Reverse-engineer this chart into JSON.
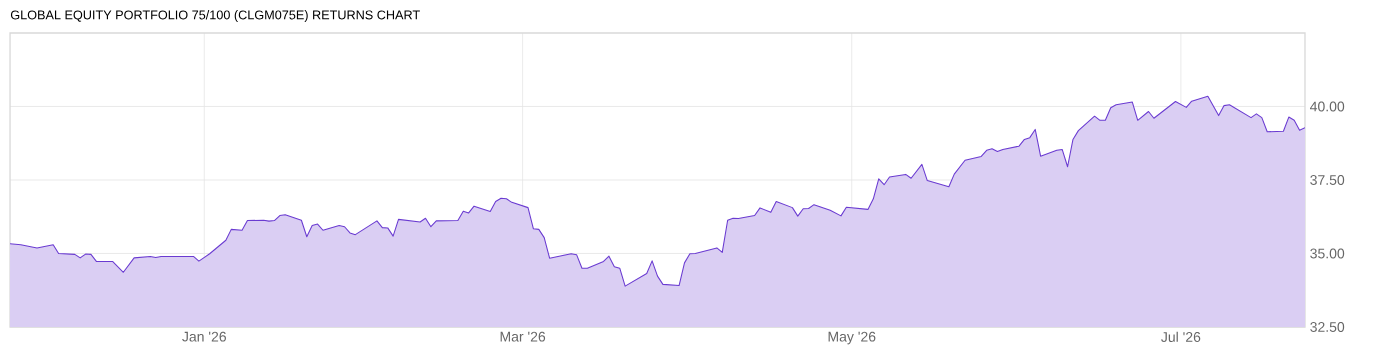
{
  "chart_data": {
    "type": "area",
    "title": "GLOBAL EQUITY PORTFOLIO 75/100 (CLGM075E) RETURNS CHART",
    "x": [
      "2025-11-26",
      "2025-11-28",
      "2025-12-01",
      "2025-12-04",
      "2025-12-05",
      "2025-12-08",
      "2025-12-09",
      "2025-12-10",
      "2025-12-11",
      "2025-12-12",
      "2025-12-15",
      "2025-12-17",
      "2025-12-19",
      "2025-12-22",
      "2025-12-23",
      "2025-12-24",
      "2025-12-30",
      "2025-12-31",
      "2026-01-02",
      "2026-01-05",
      "2026-01-06",
      "2026-01-08",
      "2026-01-09",
      "2026-01-12",
      "2026-01-13",
      "2026-01-14",
      "2026-01-15",
      "2026-01-16",
      "2026-01-19",
      "2026-01-20",
      "2026-01-21",
      "2026-01-22",
      "2026-01-23",
      "2026-01-26",
      "2026-01-27",
      "2026-01-28",
      "2026-01-29",
      "2026-02-02",
      "2026-02-03",
      "2026-02-04",
      "2026-02-05",
      "2026-02-06",
      "2026-02-10",
      "2026-02-11",
      "2026-02-12",
      "2026-02-13",
      "2026-02-17",
      "2026-02-18",
      "2026-02-19",
      "2026-02-20",
      "2026-02-23",
      "2026-02-24",
      "2026-02-25",
      "2026-02-26",
      "2026-02-27",
      "2026-03-02",
      "2026-03-03",
      "2026-03-04",
      "2026-03-05",
      "2026-03-06",
      "2026-03-10",
      "2026-03-11",
      "2026-03-12",
      "2026-03-13",
      "2026-03-16",
      "2026-03-17",
      "2026-03-18",
      "2026-03-19",
      "2026-03-20",
      "2026-03-24",
      "2026-03-25",
      "2026-03-26",
      "2026-03-27",
      "2026-03-30",
      "2026-03-31",
      "2026-04-01",
      "2026-04-02",
      "2026-04-06",
      "2026-04-07",
      "2026-04-08",
      "2026-04-09",
      "2026-04-10",
      "2026-04-13",
      "2026-04-14",
      "2026-04-16",
      "2026-04-17",
      "2026-04-20",
      "2026-04-21",
      "2026-04-22",
      "2026-04-23",
      "2026-04-24",
      "2026-04-27",
      "2026-04-29",
      "2026-04-30",
      "2026-05-04",
      "2026-05-05",
      "2026-05-06",
      "2026-05-07",
      "2026-05-08",
      "2026-05-11",
      "2026-05-12",
      "2026-05-14",
      "2026-05-15",
      "2026-05-19",
      "2026-05-20",
      "2026-05-22",
      "2026-05-25",
      "2026-05-26",
      "2026-05-27",
      "2026-05-28",
      "2026-05-29",
      "2026-06-01",
      "2026-06-02",
      "2026-06-03",
      "2026-06-04",
      "2026-06-05",
      "2026-06-08",
      "2026-06-09",
      "2026-06-10",
      "2026-06-11",
      "2026-06-12",
      "2026-06-15",
      "2026-06-16",
      "2026-06-17",
      "2026-06-18",
      "2026-06-19",
      "2026-06-22",
      "2026-06-23",
      "2026-06-25",
      "2026-06-26",
      "2026-06-30",
      "2026-07-02",
      "2026-07-03",
      "2026-07-06",
      "2026-07-08",
      "2026-07-09",
      "2026-07-10",
      "2026-07-14",
      "2026-07-15",
      "2026-07-16",
      "2026-07-17",
      "2026-07-20",
      "2026-07-21",
      "2026-07-22",
      "2026-07-23",
      "2026-07-24"
    ],
    "series": [
      {
        "color": "#6a3bd1",
        "values": [
          35.33,
          35.3,
          35.19,
          35.3,
          35.0,
          34.97,
          34.85,
          34.98,
          34.97,
          34.73,
          34.73,
          34.36,
          34.85,
          34.9,
          34.86,
          34.9,
          34.9,
          34.74,
          34.99,
          35.45,
          35.82,
          35.79,
          36.12,
          36.13,
          36.1,
          36.12,
          36.29,
          36.32,
          36.13,
          35.57,
          35.95,
          36.0,
          35.79,
          35.95,
          35.91,
          35.7,
          35.64,
          36.11,
          35.88,
          35.87,
          35.59,
          36.16,
          36.07,
          36.2,
          35.91,
          36.11,
          36.12,
          36.44,
          36.38,
          36.61,
          36.43,
          36.77,
          36.88,
          36.86,
          36.74,
          36.56,
          35.84,
          35.82,
          35.54,
          34.84,
          34.99,
          34.96,
          34.5,
          34.5,
          34.73,
          34.91,
          34.55,
          34.5,
          33.89,
          34.32,
          34.75,
          34.23,
          33.95,
          33.91,
          34.68,
          34.99,
          35.0,
          35.19,
          35.04,
          36.13,
          36.2,
          36.19,
          36.29,
          36.55,
          36.4,
          36.77,
          36.56,
          36.27,
          36.52,
          36.53,
          36.66,
          36.47,
          36.28,
          36.57,
          36.5,
          36.86,
          37.54,
          37.34,
          37.6,
          37.69,
          37.56,
          38.03,
          37.48,
          37.27,
          37.7,
          38.17,
          38.3,
          38.51,
          38.56,
          38.47,
          38.54,
          38.65,
          38.88,
          38.94,
          39.22,
          38.31,
          38.51,
          38.54,
          37.95,
          38.88,
          39.18,
          39.67,
          39.53,
          39.53,
          39.96,
          40.06,
          40.15,
          39.53,
          39.83,
          39.6,
          40.17,
          39.97,
          40.18,
          40.35,
          39.69,
          40.03,
          40.06,
          39.62,
          39.75,
          39.62,
          39.14,
          39.16,
          39.64,
          39.53,
          39.19,
          39.28
        ]
      }
    ],
    "xlim": [
      "2025-11-26",
      "2026-07-24"
    ],
    "xticks": [
      {
        "value": "2026-01-01",
        "label": "Jan '26"
      },
      {
        "value": "2026-03-01",
        "label": "Mar '26"
      },
      {
        "value": "2026-05-01",
        "label": "May '26"
      },
      {
        "value": "2026-07-01",
        "label": "Jul '26"
      }
    ],
    "ylim": [
      32.5,
      42.5
    ],
    "yticks": [
      {
        "value": 32.5,
        "label": "32.50"
      },
      {
        "value": 35,
        "label": "35.00"
      },
      {
        "value": 37.5,
        "label": "37.50"
      },
      {
        "value": 40,
        "label": "40.00"
      }
    ],
    "grid": true
  }
}
